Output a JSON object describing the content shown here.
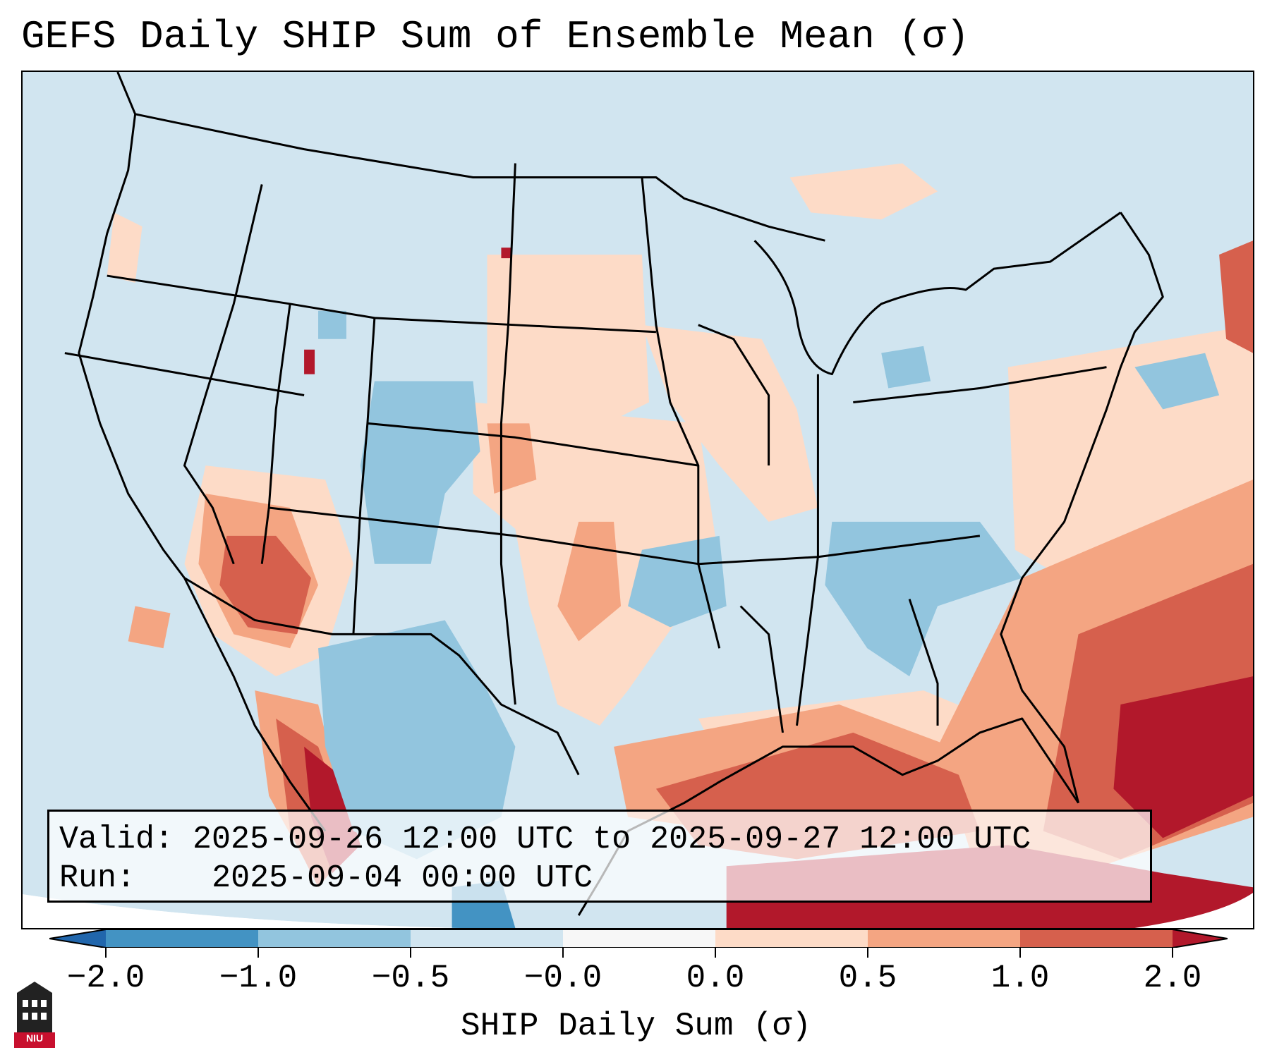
{
  "title": "GEFS Daily SHIP Sum of Ensemble Mean (σ)",
  "info": {
    "valid_label": "Valid:",
    "valid_value": "2025-09-26 12:00 UTC to 2025-09-27 12:00 UTC",
    "run_label": "Run:",
    "run_value": "2025-09-04 00:00 UTC"
  },
  "colorbar": {
    "label": "SHIP Daily Sum (σ)",
    "tick_labels": [
      "−2.0",
      "−1.0",
      "−0.5",
      "−0.0",
      "0.0",
      "0.5",
      "1.0",
      "2.0"
    ],
    "colors": {
      "under": "#2166ac",
      "neg_strong": "#4393c3",
      "neg_mid": "#92c5de",
      "neg_weak": "#d1e5f0",
      "pos_weak": "#fddbc7",
      "pos_mid": "#f4a582",
      "pos_strong": "#d6604d",
      "over": "#b2182b"
    }
  },
  "logo": {
    "text": "NIU",
    "icon": "university-tower-icon"
  }
}
